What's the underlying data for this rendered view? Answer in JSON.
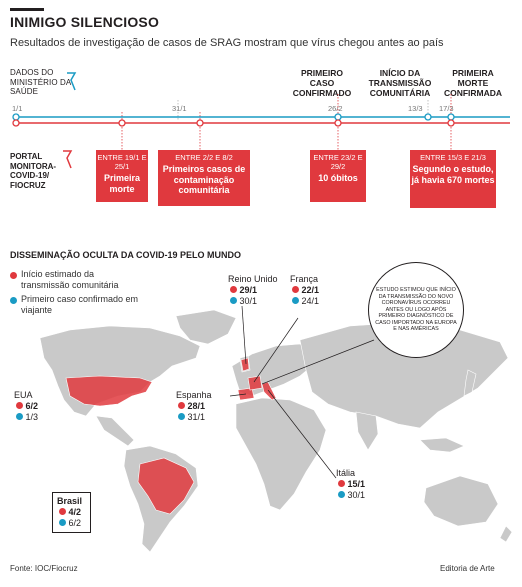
{
  "header": {
    "title": "INIMIGO SILENCIOSO",
    "subtitle": "Resultados de investigação de casos de SRAG mostram que vírus chegou antes ao país"
  },
  "timeline": {
    "official_label": "DADOS DO MINISTÉRIO DA SAÚDE",
    "portal_label": "PORTAL MONITORA-COVID-19/ FIOCRUZ",
    "dates": [
      "1/1",
      "31/1",
      "26/2",
      "13/3",
      "17/3"
    ],
    "top_events": [
      {
        "label": "PRIMEIRO CASO CONFIRMADO"
      },
      {
        "label": "INÍCIO DA TRANSMISSÃO COMUNITÁRIA"
      },
      {
        "label": "PRIMEIRA MORTE CONFIRMADA"
      }
    ],
    "boxes": [
      {
        "dates": "ENTRE 19/1 E 25/1",
        "text": "Primeira morte"
      },
      {
        "dates": "ENTRE 2/2 E 8/2",
        "text": "Primeiros casos de contaminação comunitária"
      },
      {
        "dates": "ENTRE 23/2 E 29/2",
        "text": "10 óbitos"
      },
      {
        "dates": "ENTRE 15/3 E 21/3",
        "text": "Segundo o estudo, já havia 670 mortes"
      }
    ],
    "colors": {
      "official": "#1a9bc4",
      "portal": "#e0393e"
    }
  },
  "map": {
    "title": "DISSEMINAÇÃO OCULTA DA COVID-19 PELO MUNDO",
    "legend": [
      {
        "color": "#e0393e",
        "text": "Início estimado da transmissão comunitária"
      },
      {
        "color": "#1a9bc4",
        "text": "Primeiro caso confirmado em viajante"
      }
    ],
    "countries": [
      {
        "name": "Reino Unido",
        "red": "29/1",
        "blue": "30/1"
      },
      {
        "name": "França",
        "red": "22/1",
        "blue": "24/1"
      },
      {
        "name": "EUA",
        "red": "6/2",
        "blue": "1/3"
      },
      {
        "name": "Espanha",
        "red": "28/1",
        "blue": "31/1"
      },
      {
        "name": "Itália",
        "red": "15/1",
        "blue": "30/1"
      },
      {
        "name": "Brasil",
        "red": "4/2",
        "blue": "6/2"
      }
    ],
    "note": "ESTUDO ESTIMOU QUE INÍCIO DA TRANSMISSÃO DO NOVO CORONAVÍRUS OCORREU ANTES OU LOGO APÓS PRIMEIRO DIAGNÓSTICO DE CASO IMPORTADO NA EUROPA E NAS AMÉRICAS",
    "highlight_color": "#e0393e",
    "land_color": "#c9c9c9",
    "ocean_color": "#ffffff"
  },
  "footer": {
    "source": "Fonte: IOC/Fiocruz",
    "credit": "Editoria de Arte"
  }
}
